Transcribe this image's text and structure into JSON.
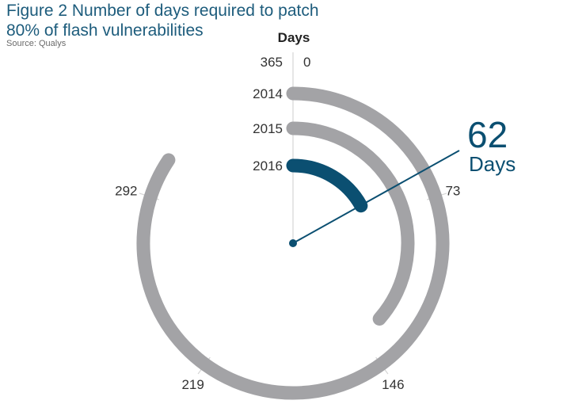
{
  "header": {
    "title_line1": "Figure 2  Number of days required to patch",
    "title_line2": "80% of flash vulnerabilities",
    "source": "Source: Qualys"
  },
  "colors": {
    "title": "#1d5c7c",
    "gray_bar": "#a3a3a6",
    "highlight_bar": "#0b4f71",
    "axis_line": "#d6d6d6",
    "callout": "#0b4f71"
  },
  "chart_data": {
    "type": "radial_bar",
    "axis_title": "Days",
    "scale_max": 365,
    "ticks": [
      {
        "value": 0,
        "label": "0"
      },
      {
        "value": 73,
        "label": "73"
      },
      {
        "value": 146,
        "label": "146"
      },
      {
        "value": 219,
        "label": "219"
      },
      {
        "value": 292,
        "label": "292"
      },
      {
        "value": 365,
        "label": "365"
      }
    ],
    "categories": [
      "2014",
      "2015",
      "2016"
    ],
    "values": [
      {
        "year": "2014",
        "days": 308
      },
      {
        "year": "2015",
        "days": 133
      },
      {
        "year": "2016",
        "days": 62
      }
    ],
    "highlight": {
      "year": "2016",
      "value_label": "62",
      "unit_label": "Days"
    }
  }
}
